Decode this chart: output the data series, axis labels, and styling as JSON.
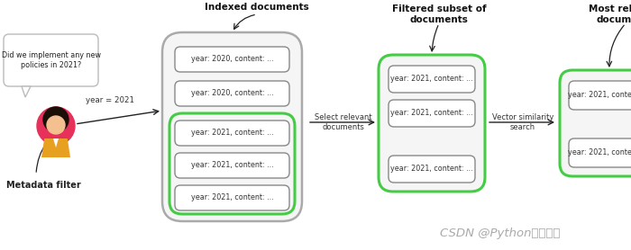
{
  "bg_color": "#ffffff",
  "title_text": "CSDN @Python算法实战",
  "speech_bubble_text": "Did we implement any new\npolicies in 2021?",
  "metadata_filter_text": "Metadata filter",
  "year_filter_text": "year = 2021",
  "indexed_docs_title": "Indexed documents",
  "filtered_subset_title": "Filtered subset of\ndocuments",
  "most_relevant_title": "Most relevant\ndocuments",
  "select_relevant_text": "Select relevant\ndocuments",
  "vector_similarity_text": "Vector similarity\nsearch",
  "doc_2020_text": "year: 2020, content: ...",
  "doc_2021_text": "year: 2021, content: ...",
  "gray_border": "#888888",
  "green_border": "#44cc44",
  "white_fill": "#ffffff",
  "light_gray_fill": "#eeeeee",
  "arrow_color": "#222222",
  "person_circle_color": "#e8315a",
  "person_body_color": "#e8a020",
  "person_face_color": "#f5c090",
  "person_hair_color": "#1a1008"
}
